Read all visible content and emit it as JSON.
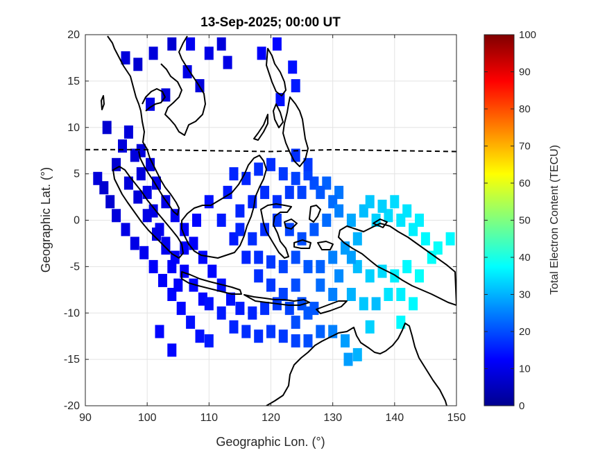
{
  "chart_data": {
    "type": "heatmap",
    "title": "13-Sep-2025; 00:00 UT",
    "xlabel": "Geographic Lon. (°)",
    "ylabel": "Geographic Lat. (°)",
    "xlim": [
      90,
      150
    ],
    "ylim": [
      -20,
      20
    ],
    "xticks": [
      "90",
      "100",
      "110",
      "120",
      "130",
      "140",
      "150"
    ],
    "yticks": [
      "20",
      "15",
      "10",
      "5",
      "0",
      "-5",
      "-10",
      "-15",
      "-20"
    ],
    "grid": true,
    "colorbar": {
      "label": "Total Electron Content (TECU)",
      "range": [
        0,
        100
      ],
      "ticks": [
        "0",
        "10",
        "20",
        "30",
        "40",
        "50",
        "60",
        "70",
        "80",
        "90",
        "100"
      ],
      "colormap": "jet"
    },
    "magnetic_equator": {
      "style": "dashed",
      "points": [
        [
          90,
          7.6
        ],
        [
          100,
          7.6
        ],
        [
          110,
          7.5
        ],
        [
          120,
          7.4
        ],
        [
          130,
          7.6
        ],
        [
          140,
          7.5
        ],
        [
          150,
          7.4
        ]
      ]
    },
    "tec_points": [
      [
        96.5,
        17.5,
        9
      ],
      [
        98.5,
        16.8,
        8
      ],
      [
        101,
        18,
        9
      ],
      [
        104,
        19,
        8
      ],
      [
        106.5,
        16,
        10
      ],
      [
        107,
        19,
        11
      ],
      [
        108.5,
        14.5,
        9
      ],
      [
        110,
        18,
        10
      ],
      [
        112,
        19,
        9
      ],
      [
        113,
        17,
        10
      ],
      [
        118.5,
        18,
        12
      ],
      [
        121,
        19,
        13
      ],
      [
        121.5,
        13,
        14
      ],
      [
        123.5,
        16.5,
        14
      ],
      [
        124,
        14.5,
        15
      ],
      [
        103,
        13.5,
        9
      ],
      [
        100.5,
        12.5,
        10
      ],
      [
        93.5,
        10,
        8
      ],
      [
        92,
        4.5,
        9
      ],
      [
        93,
        3.5,
        8
      ],
      [
        94,
        2,
        8
      ],
      [
        95,
        0.5,
        9
      ],
      [
        96.5,
        -1,
        10
      ],
      [
        98,
        -2.5,
        10
      ],
      [
        99.5,
        -3.5,
        11
      ],
      [
        101,
        -5,
        12
      ],
      [
        102.5,
        -6.5,
        12
      ],
      [
        104,
        -8,
        13
      ],
      [
        105.5,
        -9.5,
        13
      ],
      [
        107,
        -11,
        14
      ],
      [
        108.5,
        -12.5,
        14
      ],
      [
        110,
        -13,
        15
      ],
      [
        102,
        -12,
        13
      ],
      [
        104,
        -14,
        13
      ],
      [
        95,
        6,
        8
      ],
      [
        96,
        8,
        9
      ],
      [
        97,
        9.5,
        9
      ],
      [
        98,
        7,
        9
      ],
      [
        99,
        5,
        9
      ],
      [
        100,
        3,
        10
      ],
      [
        101,
        1,
        10
      ],
      [
        102,
        -1,
        11
      ],
      [
        103,
        -3,
        11
      ],
      [
        104,
        -5,
        12
      ],
      [
        105,
        -7,
        12
      ],
      [
        97,
        4,
        9
      ],
      [
        98.5,
        2.5,
        9
      ],
      [
        100,
        0.5,
        10
      ],
      [
        101.5,
        -1.5,
        10
      ],
      [
        103,
        -2.5,
        11
      ],
      [
        104.5,
        -4,
        12
      ],
      [
        106,
        -5.5,
        12
      ],
      [
        107.5,
        -7,
        13
      ],
      [
        109,
        -8.5,
        13
      ],
      [
        99,
        7.5,
        9
      ],
      [
        100.5,
        6,
        9
      ],
      [
        101.5,
        4,
        10
      ],
      [
        103,
        2,
        10
      ],
      [
        104.5,
        0.5,
        11
      ],
      [
        106,
        -1,
        12
      ],
      [
        107.5,
        -2.5,
        12
      ],
      [
        109,
        -4,
        13
      ],
      [
        110.5,
        -5.5,
        13
      ],
      [
        112,
        -7,
        14
      ],
      [
        113.5,
        -8.5,
        14
      ],
      [
        115,
        -9.5,
        15
      ],
      [
        117,
        -10,
        16
      ],
      [
        119,
        -9.5,
        17
      ],
      [
        121,
        -9,
        18
      ],
      [
        123,
        -9.5,
        19
      ],
      [
        125,
        -9,
        20
      ],
      [
        127,
        -9.5,
        21
      ],
      [
        110,
        -9,
        14
      ],
      [
        112,
        -10,
        15
      ],
      [
        114,
        -11.5,
        16
      ],
      [
        116,
        -12,
        17
      ],
      [
        118,
        -12.5,
        17
      ],
      [
        120,
        -12,
        18
      ],
      [
        122,
        -12.5,
        18
      ],
      [
        124,
        -13,
        19
      ],
      [
        126,
        -13,
        20
      ],
      [
        128,
        -12,
        22
      ],
      [
        130,
        -12,
        25
      ],
      [
        132,
        -13,
        28
      ],
      [
        134,
        -14.5,
        30
      ],
      [
        132.5,
        -15,
        28
      ],
      [
        136,
        -11.5,
        33
      ],
      [
        141,
        -11,
        37
      ],
      [
        137,
        -9,
        31
      ],
      [
        106,
        -3,
        12
      ],
      [
        108,
        0,
        13
      ],
      [
        110,
        2,
        14
      ],
      [
        112,
        0,
        15
      ],
      [
        114,
        -2,
        15
      ],
      [
        116,
        -4,
        16
      ],
      [
        118,
        -6,
        17
      ],
      [
        120,
        -7,
        18
      ],
      [
        122,
        -8,
        19
      ],
      [
        124,
        -7,
        20
      ],
      [
        113,
        3,
        15
      ],
      [
        115,
        1,
        16
      ],
      [
        117,
        2,
        16
      ],
      [
        119,
        3,
        17
      ],
      [
        121,
        2,
        17
      ],
      [
        123,
        3,
        18
      ],
      [
        125,
        3,
        19
      ],
      [
        127,
        4,
        20
      ],
      [
        129,
        4,
        22
      ],
      [
        131,
        3,
        24
      ],
      [
        114,
        5,
        16
      ],
      [
        116,
        4.5,
        16
      ],
      [
        118,
        5.5,
        17
      ],
      [
        120,
        6,
        17
      ],
      [
        122,
        5,
        18
      ],
      [
        124,
        4.5,
        19
      ],
      [
        126,
        5,
        19
      ],
      [
        128,
        3,
        21
      ],
      [
        130,
        2,
        23
      ],
      [
        115,
        -1,
        16
      ],
      [
        117,
        -2,
        17
      ],
      [
        119,
        -1,
        17
      ],
      [
        121,
        0,
        18
      ],
      [
        123,
        -1,
        19
      ],
      [
        125,
        -2,
        20
      ],
      [
        127,
        -1,
        21
      ],
      [
        129,
        0,
        23
      ],
      [
        131,
        1,
        25
      ],
      [
        118,
        -4,
        17
      ],
      [
        120,
        -4.5,
        18
      ],
      [
        122,
        -5,
        19
      ],
      [
        124,
        -4,
        20
      ],
      [
        126,
        -5,
        21
      ],
      [
        128,
        -5,
        22
      ],
      [
        130,
        -4,
        25
      ],
      [
        132,
        -3,
        28
      ],
      [
        134,
        -2,
        30
      ],
      [
        133,
        0,
        29
      ],
      [
        135,
        1,
        31
      ],
      [
        137,
        0,
        33
      ],
      [
        139,
        0.5,
        34
      ],
      [
        141,
        0,
        35
      ],
      [
        143,
        -1,
        36
      ],
      [
        145,
        -2,
        37
      ],
      [
        147,
        -3,
        38
      ],
      [
        149,
        -2,
        37
      ],
      [
        136,
        2,
        32
      ],
      [
        138,
        1.5,
        33
      ],
      [
        140,
        2,
        34
      ],
      [
        142,
        1,
        35
      ],
      [
        144,
        0,
        36
      ],
      [
        134,
        -5,
        31
      ],
      [
        136,
        -6,
        33
      ],
      [
        138,
        -5.5,
        34
      ],
      [
        140,
        -6,
        36
      ],
      [
        142,
        -5,
        37
      ],
      [
        144,
        -6,
        38
      ],
      [
        146,
        -4,
        38
      ],
      [
        133,
        -8,
        30
      ],
      [
        135,
        -9,
        32
      ],
      [
        139,
        -8,
        35
      ],
      [
        141,
        -8,
        36
      ],
      [
        143,
        -9,
        37
      ],
      [
        128,
        -7,
        23
      ],
      [
        130,
        -8,
        25
      ],
      [
        126,
        -10,
        21
      ],
      [
        124,
        -11,
        20
      ],
      [
        131,
        -6,
        26
      ],
      [
        133,
        -4,
        28
      ],
      [
        124,
        7,
        17
      ],
      [
        126,
        6,
        18
      ]
    ]
  }
}
